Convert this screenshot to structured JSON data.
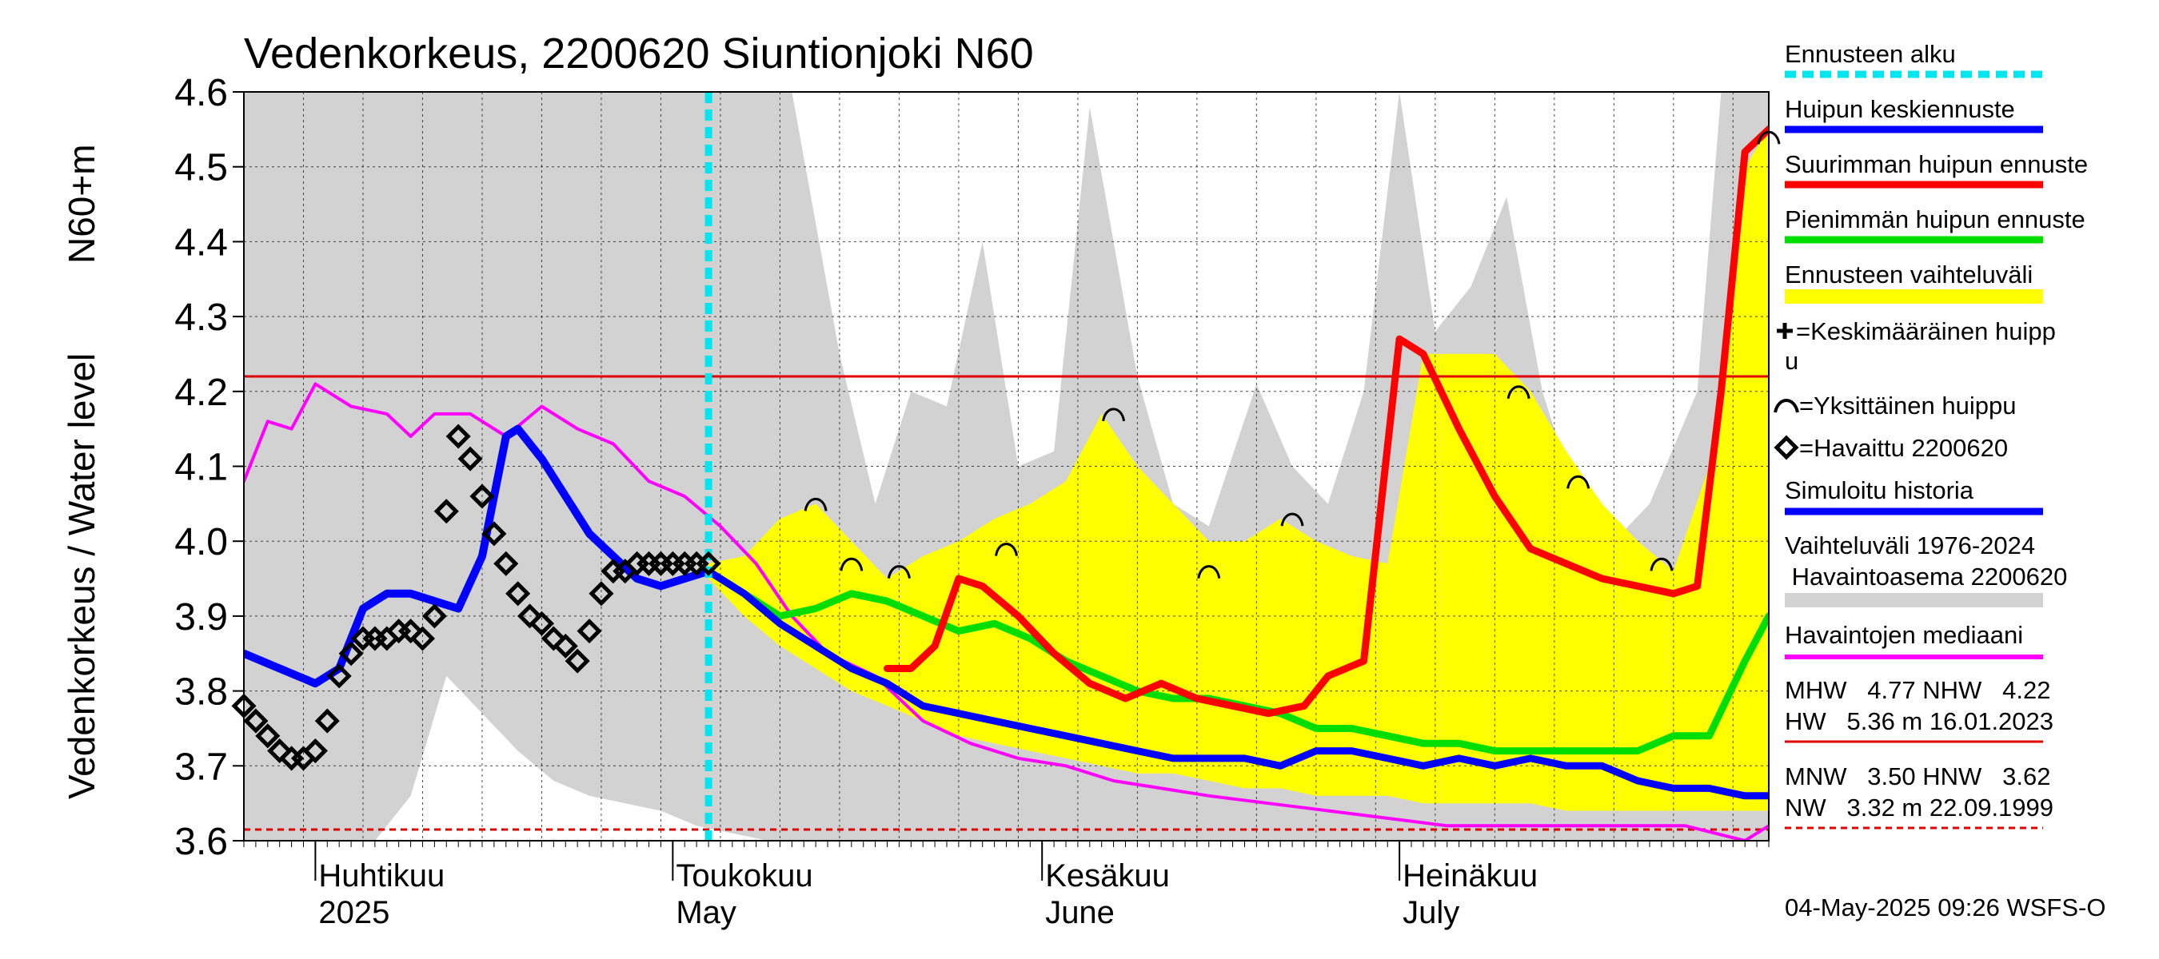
{
  "chart_data": {
    "type": "line",
    "title": "Vedenkorkeus, 2200620 Siuntionjoki N60",
    "ylabel_primary": "Vedenkorkeus / Water level",
    "ylabel_secondary": "N60+m",
    "ylim": [
      3.6,
      4.6
    ],
    "y_ticks": [
      "3.6",
      "3.7",
      "3.8",
      "3.9",
      "4.0",
      "4.1",
      "4.2",
      "4.3",
      "4.4",
      "4.5",
      "4.6"
    ],
    "x_range": [
      "2025-03-26",
      "2025-08-01"
    ],
    "x_month_labels": [
      {
        "date": "2025-04-01",
        "fi": "Huhtikuu",
        "en": "2025"
      },
      {
        "date": "2025-05-01",
        "fi": "Toukokuu",
        "en": "May"
      },
      {
        "date": "2025-06-01",
        "fi": "Kesäkuu",
        "en": "June"
      },
      {
        "date": "2025-07-01",
        "fi": "Heinäkuu",
        "en": "July"
      }
    ],
    "grid": true,
    "legend_position": "right",
    "forecast_start": "2025-05-04",
    "hlines": [
      {
        "name": "HW",
        "value": 4.22,
        "color": "#e00000",
        "style": "solid"
      },
      {
        "name": "NW",
        "value": 3.615,
        "color": "#e00000",
        "style": "dashed"
      }
    ],
    "series": [
      {
        "name": "Vaihteluväli 1976-2024 Havaintoasema 2200620",
        "kind": "band",
        "color": "#d2d2d2",
        "x": [
          "2025-03-26",
          "2025-03-30",
          "2025-04-03",
          "2025-04-06",
          "2025-04-09",
          "2025-04-12",
          "2025-04-15",
          "2025-04-18",
          "2025-04-21",
          "2025-04-24",
          "2025-04-27",
          "2025-04-30",
          "2025-05-03",
          "2025-05-06",
          "2025-05-09",
          "2025-05-11",
          "2025-05-15",
          "2025-05-18",
          "2025-05-21",
          "2025-05-24",
          "2025-05-27",
          "2025-05-30",
          "2025-06-02",
          "2025-06-05",
          "2025-06-09",
          "2025-06-12",
          "2025-06-15",
          "2025-06-19",
          "2025-06-22",
          "2025-06-25",
          "2025-06-28",
          "2025-07-01",
          "2025-07-04",
          "2025-07-07",
          "2025-07-10",
          "2025-07-13",
          "2025-07-16",
          "2025-07-19",
          "2025-07-22",
          "2025-07-26",
          "2025-07-28",
          "2025-07-30",
          "2025-08-01"
        ],
        "low": [
          3.6,
          3.6,
          3.6,
          3.6,
          3.66,
          3.82,
          3.77,
          3.72,
          3.68,
          3.66,
          3.65,
          3.64,
          3.62,
          3.61,
          3.6,
          3.6,
          3.6,
          3.6,
          3.6,
          3.6,
          3.6,
          3.6,
          3.6,
          3.6,
          3.6,
          3.6,
          3.6,
          3.6,
          3.6,
          3.6,
          3.6,
          3.6,
          3.6,
          3.6,
          3.6,
          3.6,
          3.6,
          3.6,
          3.6,
          3.6,
          3.6,
          3.6,
          3.6
        ],
        "high": [
          4.6,
          4.6,
          4.6,
          4.6,
          4.6,
          4.6,
          4.6,
          4.6,
          4.6,
          4.6,
          4.6,
          4.6,
          4.6,
          4.6,
          4.6,
          4.6,
          4.25,
          4.05,
          4.2,
          4.18,
          4.4,
          4.1,
          4.12,
          4.58,
          4.22,
          4.05,
          4.02,
          4.21,
          4.1,
          4.05,
          4.2,
          4.6,
          4.28,
          4.34,
          4.46,
          4.2,
          4.05,
          4.0,
          4.05,
          4.2,
          4.6,
          4.6,
          4.6
        ]
      },
      {
        "name": "Ennusteen vaihteluväli",
        "kind": "band",
        "color": "#ffff00",
        "x": [
          "2025-05-04",
          "2025-05-07",
          "2025-05-10",
          "2025-05-13",
          "2025-05-16",
          "2025-05-19",
          "2025-05-22",
          "2025-05-25",
          "2025-05-28",
          "2025-05-31",
          "2025-06-03",
          "2025-06-06",
          "2025-06-09",
          "2025-06-12",
          "2025-06-15",
          "2025-06-18",
          "2025-06-21",
          "2025-06-24",
          "2025-06-27",
          "2025-06-30",
          "2025-07-03",
          "2025-07-06",
          "2025-07-09",
          "2025-07-12",
          "2025-07-15",
          "2025-07-18",
          "2025-07-21",
          "2025-07-24",
          "2025-07-27",
          "2025-07-30",
          "2025-08-01"
        ],
        "low": [
          3.95,
          3.9,
          3.86,
          3.83,
          3.8,
          3.78,
          3.76,
          3.74,
          3.73,
          3.72,
          3.71,
          3.7,
          3.69,
          3.69,
          3.68,
          3.67,
          3.67,
          3.66,
          3.66,
          3.66,
          3.65,
          3.65,
          3.65,
          3.65,
          3.64,
          3.64,
          3.64,
          3.64,
          3.64,
          3.64,
          3.64
        ],
        "high": [
          3.97,
          3.98,
          4.03,
          4.05,
          4.0,
          3.95,
          3.98,
          4.0,
          4.03,
          4.05,
          4.08,
          4.17,
          4.1,
          4.05,
          4.0,
          4.0,
          4.03,
          4.0,
          3.98,
          3.97,
          4.25,
          4.25,
          4.25,
          4.2,
          4.12,
          4.05,
          4.0,
          3.96,
          4.1,
          4.5,
          4.55
        ]
      },
      {
        "name": "Havaintojen mediaani",
        "kind": "line",
        "color": "#ff00ff",
        "x": [
          "2025-03-26",
          "2025-03-28",
          "2025-03-30",
          "2025-04-01",
          "2025-04-04",
          "2025-04-07",
          "2025-04-09",
          "2025-04-11",
          "2025-04-14",
          "2025-04-17",
          "2025-04-20",
          "2025-04-23",
          "2025-04-26",
          "2025-04-29",
          "2025-05-02",
          "2025-05-05",
          "2025-05-08",
          "2025-05-11",
          "2025-05-14",
          "2025-05-18",
          "2025-05-22",
          "2025-05-26",
          "2025-05-30",
          "2025-06-03",
          "2025-06-07",
          "2025-06-11",
          "2025-06-15",
          "2025-06-20",
          "2025-06-25",
          "2025-06-30",
          "2025-07-05",
          "2025-07-10",
          "2025-07-15",
          "2025-07-20",
          "2025-07-25",
          "2025-07-30",
          "2025-08-01"
        ],
        "values": [
          4.08,
          4.16,
          4.15,
          4.21,
          4.18,
          4.17,
          4.14,
          4.17,
          4.17,
          4.14,
          4.18,
          4.15,
          4.13,
          4.08,
          4.06,
          4.02,
          3.97,
          3.9,
          3.85,
          3.82,
          3.76,
          3.73,
          3.71,
          3.7,
          3.68,
          3.67,
          3.66,
          3.65,
          3.64,
          3.63,
          3.62,
          3.62,
          3.62,
          3.62,
          3.62,
          3.6,
          3.62
        ]
      },
      {
        "name": "Simuloitu historia",
        "kind": "line",
        "color": "#0000ff",
        "x": [
          "2025-03-26",
          "2025-03-29",
          "2025-04-01",
          "2025-04-03",
          "2025-04-05",
          "2025-04-07",
          "2025-04-09",
          "2025-04-11",
          "2025-04-13",
          "2025-04-15",
          "2025-04-17",
          "2025-04-18",
          "2025-04-20",
          "2025-04-22",
          "2025-04-24",
          "2025-04-26",
          "2025-04-28",
          "2025-04-30",
          "2025-05-02",
          "2025-05-04"
        ],
        "values": [
          3.85,
          3.83,
          3.81,
          3.83,
          3.91,
          3.93,
          3.93,
          3.92,
          3.91,
          3.98,
          4.14,
          4.15,
          4.11,
          4.06,
          4.01,
          3.98,
          3.95,
          3.94,
          3.95,
          3.96
        ]
      },
      {
        "name": "Huipun keskiennuste",
        "kind": "line",
        "color": "#0000ff",
        "x": [
          "2025-05-04",
          "2025-05-07",
          "2025-05-10",
          "2025-05-13",
          "2025-05-16",
          "2025-05-19",
          "2025-05-22",
          "2025-05-25",
          "2025-05-28",
          "2025-05-31",
          "2025-06-03",
          "2025-06-06",
          "2025-06-09",
          "2025-06-12",
          "2025-06-15",
          "2025-06-18",
          "2025-06-21",
          "2025-06-24",
          "2025-06-27",
          "2025-06-30",
          "2025-07-03",
          "2025-07-06",
          "2025-07-09",
          "2025-07-12",
          "2025-07-15",
          "2025-07-18",
          "2025-07-21",
          "2025-07-24",
          "2025-07-27",
          "2025-07-30",
          "2025-08-01"
        ],
        "values": [
          3.96,
          3.93,
          3.89,
          3.86,
          3.83,
          3.81,
          3.78,
          3.77,
          3.76,
          3.75,
          3.74,
          3.73,
          3.72,
          3.71,
          3.71,
          3.71,
          3.7,
          3.72,
          3.72,
          3.71,
          3.7,
          3.71,
          3.7,
          3.71,
          3.7,
          3.7,
          3.68,
          3.67,
          3.67,
          3.66,
          3.66
        ]
      },
      {
        "name": "Pienimmän huipun ennuste",
        "kind": "line",
        "color": "#00dd00",
        "x": [
          "2025-05-04",
          "2025-05-07",
          "2025-05-10",
          "2025-05-13",
          "2025-05-16",
          "2025-05-19",
          "2025-05-22",
          "2025-05-25",
          "2025-05-28",
          "2025-05-31",
          "2025-06-03",
          "2025-06-06",
          "2025-06-09",
          "2025-06-12",
          "2025-06-15",
          "2025-06-18",
          "2025-06-21",
          "2025-06-24",
          "2025-06-27",
          "2025-06-30",
          "2025-07-03",
          "2025-07-06",
          "2025-07-09",
          "2025-07-12",
          "2025-07-15",
          "2025-07-18",
          "2025-07-21",
          "2025-07-24",
          "2025-07-27",
          "2025-07-30",
          "2025-08-01"
        ],
        "values": [
          3.96,
          3.93,
          3.9,
          3.91,
          3.93,
          3.92,
          3.9,
          3.88,
          3.89,
          3.87,
          3.84,
          3.82,
          3.8,
          3.79,
          3.79,
          3.78,
          3.77,
          3.75,
          3.75,
          3.74,
          3.73,
          3.73,
          3.72,
          3.72,
          3.72,
          3.72,
          3.72,
          3.74,
          3.74,
          3.84,
          3.9
        ]
      },
      {
        "name": "Suurimman huipun ennuste",
        "kind": "line",
        "color": "#ff0000",
        "x": [
          "2025-05-19",
          "2025-05-21",
          "2025-05-23",
          "2025-05-25",
          "2025-05-27",
          "2025-05-30",
          "2025-06-02",
          "2025-06-05",
          "2025-06-08",
          "2025-06-11",
          "2025-06-14",
          "2025-06-17",
          "2025-06-20",
          "2025-06-23",
          "2025-06-25",
          "2025-06-28",
          "2025-07-01",
          "2025-07-03",
          "2025-07-06",
          "2025-07-09",
          "2025-07-12",
          "2025-07-15",
          "2025-07-18",
          "2025-07-21",
          "2025-07-24",
          "2025-07-26",
          "2025-07-28",
          "2025-07-30",
          "2025-08-01"
        ],
        "values": [
          3.83,
          3.83,
          3.86,
          3.95,
          3.94,
          3.9,
          3.85,
          3.81,
          3.79,
          3.81,
          3.79,
          3.78,
          3.77,
          3.78,
          3.82,
          3.84,
          4.27,
          4.25,
          4.15,
          4.06,
          3.99,
          3.97,
          3.95,
          3.94,
          3.93,
          3.94,
          4.2,
          4.52,
          4.55
        ]
      },
      {
        "name": "Havaittu 2200620",
        "kind": "scatter",
        "color": "#000000",
        "x": [
          "2025-03-26",
          "2025-03-27",
          "2025-03-28",
          "2025-03-29",
          "2025-03-30",
          "2025-03-31",
          "2025-04-01",
          "2025-04-02",
          "2025-04-03",
          "2025-04-04",
          "2025-04-05",
          "2025-04-06",
          "2025-04-07",
          "2025-04-08",
          "2025-04-09",
          "2025-04-10",
          "2025-04-11",
          "2025-04-12",
          "2025-04-13",
          "2025-04-14",
          "2025-04-15",
          "2025-04-16",
          "2025-04-17",
          "2025-04-18",
          "2025-04-19",
          "2025-04-20",
          "2025-04-21",
          "2025-04-22",
          "2025-04-23",
          "2025-04-24",
          "2025-04-25",
          "2025-04-26",
          "2025-04-27",
          "2025-04-28",
          "2025-04-29",
          "2025-04-30",
          "2025-05-01",
          "2025-05-02",
          "2025-05-03",
          "2025-05-04"
        ],
        "values": [
          3.78,
          3.76,
          3.74,
          3.72,
          3.71,
          3.71,
          3.72,
          3.76,
          3.82,
          3.85,
          3.87,
          3.87,
          3.87,
          3.88,
          3.88,
          3.87,
          3.9,
          4.04,
          4.14,
          4.11,
          4.06,
          4.01,
          3.97,
          3.93,
          3.9,
          3.89,
          3.87,
          3.86,
          3.84,
          3.88,
          3.93,
          3.96,
          3.96,
          3.97,
          3.97,
          3.97,
          3.97,
          3.97,
          3.97,
          3.97
        ]
      }
    ],
    "peak_markers": {
      "name": "Yksittäinen huippu",
      "x": [
        "2025-05-13",
        "2025-05-16",
        "2025-05-20",
        "2025-05-29",
        "2025-06-07",
        "2025-06-15",
        "2025-06-22",
        "2025-07-11",
        "2025-07-16",
        "2025-07-23",
        "2025-08-01"
      ],
      "values": [
        4.05,
        3.97,
        3.96,
        3.99,
        4.17,
        3.96,
        4.03,
        4.2,
        4.08,
        3.97,
        4.54
      ]
    }
  },
  "legend": {
    "items": [
      {
        "label": "Ennusteen alku",
        "color": "#00e5ee",
        "style": "dotted"
      },
      {
        "label": "Huipun keskiennuste",
        "color": "#0000ff",
        "style": "line"
      },
      {
        "label": "Suurimman huipun ennuste",
        "color": "#ff0000",
        "style": "line"
      },
      {
        "label": "Pienimmän huipun ennuste",
        "color": "#00dd00",
        "style": "line"
      },
      {
        "label": "Ennusteen vaihteluväli",
        "color": "#ffff00",
        "style": "band"
      }
    ],
    "symbol_keskimaarainen_line1": "=Keskimääräinen huipp",
    "symbol_keskimaarainen_line2": "u",
    "symbol_yksittainen": "=Yksittäinen huippu",
    "symbol_havaittu": "=Havaittu 2200620",
    "simuloitu": {
      "label": "Simuloitu historia",
      "color": "#0000ff"
    },
    "vaihteluvali_line1": "Vaihteluväli 1976-2024",
    "vaihteluvali_line2": " Havaintoasema 2200620",
    "vaihteluvali_color": "#d2d2d2",
    "mediaani": {
      "label": "Havaintojen mediaani",
      "color": "#ff00ff"
    },
    "stats_upper_1": "MHW   4.77 NHW   4.22",
    "stats_upper_2": "HW   5.36 m 16.01.2023",
    "stats_lower_1": "MNW   3.50 HNW   3.62",
    "stats_lower_2": "NW   3.32 m 22.09.1999"
  },
  "timestamp": "04-May-2025 09:26 WSFS-O"
}
